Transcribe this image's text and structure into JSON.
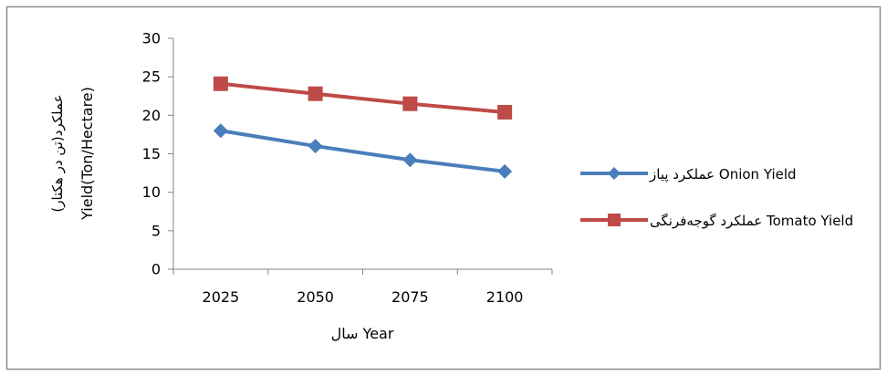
{
  "chart_data": {
    "type": "line",
    "categories": [
      "2025",
      "2050",
      "2075",
      "2100"
    ],
    "series": [
      {
        "name": "عملکرد پیاز Onion Yield",
        "values": [
          18.0,
          16.0,
          14.2,
          12.7
        ],
        "color": "#4a7ebb",
        "marker": "diamond"
      },
      {
        "name": "عملکرد گوجه‌فرنگی Tomato Yield",
        "values": [
          24.1,
          22.8,
          21.5,
          20.4
        ],
        "color": "#be4b48",
        "marker": "square"
      }
    ],
    "ylim": [
      0,
      30
    ],
    "yticks": [
      0,
      5,
      10,
      15,
      20,
      25,
      30
    ],
    "xlabel": "سال Year",
    "ylabel_line1": "عملکرد(تن در هکتار)",
    "ylabel_line2": "Yield(Ton/Hectare)",
    "grid": false,
    "legend_position": "right"
  }
}
